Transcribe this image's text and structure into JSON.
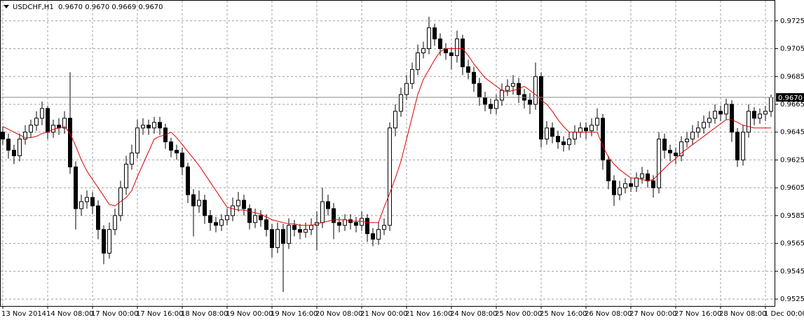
{
  "chart_data": {
    "type": "candlestick",
    "title": "USDCHF,H1  0.9670 0.9670 0.9669 0.9670",
    "up_color": "#ffffff",
    "down_color": "#000000",
    "outline_color": "#000000",
    "ylim": [
      0.952,
      0.974
    ],
    "yticks": [
      0.9725,
      0.9705,
      0.9685,
      0.9665,
      0.9645,
      0.9625,
      0.9605,
      0.9585,
      0.9565,
      0.9545,
      0.9525
    ],
    "grid": true,
    "xticks": [
      {
        "value": 0,
        "label": "13 Nov 2014"
      },
      {
        "value": 8,
        "label": "14 Nov 08:00"
      },
      {
        "value": 16,
        "label": "17 Nov 00:00"
      },
      {
        "value": 24,
        "label": "17 Nov 16:00"
      },
      {
        "value": 32,
        "label": "18 Nov 08:00"
      },
      {
        "value": 40,
        "label": "19 Nov 00:00"
      },
      {
        "value": 48,
        "label": "19 Nov 16:00"
      },
      {
        "value": 56,
        "label": "20 Nov 08:00"
      },
      {
        "value": 64,
        "label": "21 Nov 00:00"
      },
      {
        "value": 72,
        "label": "21 Nov 16:00"
      },
      {
        "value": 80,
        "label": "24 Nov 08:00"
      },
      {
        "value": 88,
        "label": "25 Nov 00:00"
      },
      {
        "value": 96,
        "label": "25 Nov 16:00"
      },
      {
        "value": 104,
        "label": "26 Nov 08:00"
      },
      {
        "value": 112,
        "label": "27 Nov 00:00"
      },
      {
        "value": 120,
        "label": "27 Nov 16:00"
      },
      {
        "value": 128,
        "label": "28 Nov 08:00"
      },
      {
        "value": 136,
        "label": "1 Dec 00:00"
      }
    ],
    "last_price": {
      "value": 0.967,
      "label": "0.9670"
    },
    "open": [
      0.9645,
      0.964,
      0.9632,
      0.9628,
      0.964,
      0.9645,
      0.965,
      0.9655,
      0.9662,
      0.9645,
      0.965,
      0.9648,
      0.9655,
      0.962,
      0.959,
      0.9595,
      0.9598,
      0.9592,
      0.9575,
      0.9558,
      0.9575,
      0.9585,
      0.9605,
      0.9622,
      0.963,
      0.9648,
      0.965,
      0.9648,
      0.9652,
      0.9648,
      0.9638,
      0.9632,
      0.963,
      0.962,
      0.96,
      0.9592,
      0.9596,
      0.9585,
      0.958,
      0.9578,
      0.9582,
      0.9585,
      0.9592,
      0.9596,
      0.959,
      0.958,
      0.9585,
      0.9582,
      0.9575,
      0.9562,
      0.9575,
      0.9565,
      0.9578,
      0.9575,
      0.9573,
      0.9575,
      0.9578,
      0.958,
      0.9595,
      0.959,
      0.958,
      0.9578,
      0.9582,
      0.958,
      0.9578,
      0.9583,
      0.9572,
      0.9568,
      0.9575,
      0.9578,
      0.9648,
      0.966,
      0.9672,
      0.968,
      0.969,
      0.9702,
      0.9705,
      0.972,
      0.9712,
      0.9705,
      0.9702,
      0.97,
      0.9712,
      0.9692,
      0.9688,
      0.968,
      0.967,
      0.9665,
      0.9662,
      0.9668,
      0.9675,
      0.9678,
      0.968,
      0.9672,
      0.9668,
      0.9665,
      0.9685,
      0.964,
      0.9648,
      0.9642,
      0.9638,
      0.9636,
      0.964,
      0.9645,
      0.9648,
      0.9646,
      0.965,
      0.9655,
      0.9625,
      0.961,
      0.96,
      0.9605,
      0.9608,
      0.9606,
      0.9612,
      0.9615,
      0.961,
      0.9605,
      0.964,
      0.9632,
      0.963,
      0.9628,
      0.9638,
      0.964,
      0.9645,
      0.9648,
      0.9652,
      0.9655,
      0.966,
      0.9658,
      0.9665,
      0.9645,
      0.9625,
      0.9645,
      0.966,
      0.9655,
      0.9658,
      0.966
    ],
    "high": [
      0.9649,
      0.9644,
      0.9636,
      0.9644,
      0.965,
      0.9654,
      0.966,
      0.9667,
      0.9664,
      0.9654,
      0.9655,
      0.966,
      0.9688,
      0.9624,
      0.96,
      0.9603,
      0.9602,
      0.9596,
      0.9578,
      0.958,
      0.959,
      0.961,
      0.9628,
      0.9636,
      0.9654,
      0.9655,
      0.9654,
      0.9656,
      0.9656,
      0.9651,
      0.9641,
      0.9636,
      0.9634,
      0.9623,
      0.9604,
      0.9603,
      0.96,
      0.9589,
      0.9584,
      0.9586,
      0.959,
      0.9598,
      0.9602,
      0.96,
      0.9593,
      0.959,
      0.9589,
      0.9586,
      0.9579,
      0.958,
      0.9579,
      0.9583,
      0.9582,
      0.9579,
      0.958,
      0.9583,
      0.9588,
      0.9605,
      0.96,
      0.9594,
      0.9584,
      0.9586,
      0.9586,
      0.9584,
      0.9588,
      0.9586,
      0.9576,
      0.958,
      0.9583,
      0.9652,
      0.9665,
      0.9677,
      0.9686,
      0.9695,
      0.9708,
      0.971,
      0.9728,
      0.9723,
      0.9716,
      0.9709,
      0.9706,
      0.9718,
      0.9715,
      0.9697,
      0.9692,
      0.9684,
      0.9674,
      0.9669,
      0.9672,
      0.968,
      0.9683,
      0.9686,
      0.9684,
      0.9676,
      0.9673,
      0.9695,
      0.9688,
      0.9653,
      0.9652,
      0.9646,
      0.9642,
      0.9645,
      0.965,
      0.9652,
      0.9652,
      0.9655,
      0.9662,
      0.9658,
      0.9628,
      0.9614,
      0.961,
      0.9612,
      0.9612,
      0.9616,
      0.962,
      0.9618,
      0.9614,
      0.9645,
      0.9644,
      0.9636,
      0.9634,
      0.9642,
      0.9645,
      0.965,
      0.9653,
      0.9657,
      0.966,
      0.9665,
      0.9664,
      0.9669,
      0.9668,
      0.9648,
      0.965,
      0.9665,
      0.9663,
      0.9662,
      0.9664,
      0.9672
    ],
    "low": [
      0.9636,
      0.9626,
      0.9622,
      0.9624,
      0.9636,
      0.9641,
      0.9646,
      0.965,
      0.964,
      0.9641,
      0.9643,
      0.9644,
      0.9615,
      0.9575,
      0.9585,
      0.959,
      0.9586,
      0.9568,
      0.955,
      0.9554,
      0.9571,
      0.9581,
      0.96,
      0.9618,
      0.9626,
      0.9643,
      0.9643,
      0.9644,
      0.9643,
      0.9633,
      0.9627,
      0.9625,
      0.9614,
      0.9594,
      0.957,
      0.9587,
      0.9579,
      0.9574,
      0.9573,
      0.9574,
      0.9578,
      0.9581,
      0.9588,
      0.9585,
      0.9575,
      0.9576,
      0.9577,
      0.957,
      0.9555,
      0.9558,
      0.953,
      0.9561,
      0.957,
      0.9568,
      0.9569,
      0.9571,
      0.956,
      0.9576,
      0.9585,
      0.9568,
      0.9573,
      0.9574,
      0.9575,
      0.9573,
      0.9574,
      0.9566,
      0.9563,
      0.9564,
      0.9571,
      0.9574,
      0.9642,
      0.9656,
      0.9668,
      0.9676,
      0.9686,
      0.9698,
      0.9701,
      0.9707,
      0.97,
      0.9697,
      0.969,
      0.9695,
      0.9686,
      0.9683,
      0.9674,
      0.9664,
      0.966,
      0.9658,
      0.9658,
      0.9664,
      0.9671,
      0.9672,
      0.9666,
      0.9662,
      0.9658,
      0.9661,
      0.9634,
      0.9636,
      0.9637,
      0.9633,
      0.9631,
      0.9632,
      0.9636,
      0.9641,
      0.964,
      0.9642,
      0.9646,
      0.9618,
      0.9604,
      0.9592,
      0.9596,
      0.9601,
      0.9602,
      0.9602,
      0.9608,
      0.9605,
      0.9598,
      0.9601,
      0.9626,
      0.9624,
      0.9622,
      0.9624,
      0.9634,
      0.9636,
      0.9641,
      0.9644,
      0.9648,
      0.9651,
      0.9653,
      0.9654,
      0.9638,
      0.962,
      0.9621,
      0.9641,
      0.965,
      0.9651,
      0.9653,
      0.9656
    ],
    "close": [
      0.964,
      0.9632,
      0.9628,
      0.964,
      0.9645,
      0.965,
      0.9655,
      0.9662,
      0.9645,
      0.965,
      0.9648,
      0.9655,
      0.962,
      0.959,
      0.9595,
      0.9598,
      0.9592,
      0.9575,
      0.9558,
      0.9575,
      0.9585,
      0.9605,
      0.9622,
      0.963,
      0.9648,
      0.965,
      0.9648,
      0.9652,
      0.9648,
      0.9638,
      0.9632,
      0.963,
      0.962,
      0.96,
      0.9592,
      0.9596,
      0.9585,
      0.958,
      0.9578,
      0.9582,
      0.9585,
      0.9592,
      0.9596,
      0.959,
      0.958,
      0.9585,
      0.9582,
      0.9575,
      0.9562,
      0.9575,
      0.9565,
      0.9578,
      0.9575,
      0.9573,
      0.9575,
      0.9578,
      0.958,
      0.9595,
      0.959,
      0.958,
      0.9578,
      0.9582,
      0.958,
      0.9578,
      0.9583,
      0.9572,
      0.9568,
      0.9575,
      0.9578,
      0.9648,
      0.966,
      0.9672,
      0.968,
      0.969,
      0.9702,
      0.9705,
      0.972,
      0.9712,
      0.9705,
      0.9702,
      0.97,
      0.9712,
      0.9692,
      0.9688,
      0.968,
      0.967,
      0.9665,
      0.9662,
      0.9668,
      0.9675,
      0.9678,
      0.968,
      0.9672,
      0.9668,
      0.9665,
      0.9685,
      0.964,
      0.9648,
      0.9642,
      0.9638,
      0.9636,
      0.964,
      0.9645,
      0.9648,
      0.9646,
      0.965,
      0.9655,
      0.9625,
      0.961,
      0.96,
      0.9605,
      0.9608,
      0.9606,
      0.9612,
      0.9615,
      0.961,
      0.9605,
      0.964,
      0.9632,
      0.963,
      0.9628,
      0.9638,
      0.964,
      0.9645,
      0.9648,
      0.9652,
      0.9655,
      0.966,
      0.9658,
      0.9665,
      0.9645,
      0.9625,
      0.9645,
      0.966,
      0.9655,
      0.9658,
      0.966,
      0.967
    ],
    "overlay": {
      "color": "#e00000",
      "values": [
        0.9649,
        0.9647,
        0.9645,
        0.9643,
        0.9641,
        0.9641,
        0.9642,
        0.9644,
        0.9645,
        0.9647,
        0.9648,
        0.9649,
        0.9644,
        0.9635,
        0.9625,
        0.9617,
        0.9611,
        0.9605,
        0.9599,
        0.9593,
        0.9592,
        0.9595,
        0.9598,
        0.9603,
        0.9613,
        0.9622,
        0.9631,
        0.964,
        0.9642,
        0.9643,
        0.9645,
        0.9641,
        0.9636,
        0.9631,
        0.9626,
        0.9621,
        0.9615,
        0.9609,
        0.9603,
        0.9597,
        0.9591,
        0.959,
        0.9589,
        0.9589,
        0.9588,
        0.9587,
        0.9586,
        0.9584,
        0.9582,
        0.9581,
        0.958,
        0.9579,
        0.9579,
        0.9578,
        0.9578,
        0.9578,
        0.9579,
        0.958,
        0.9581,
        0.9582,
        0.9582,
        0.9582,
        0.9581,
        0.9581,
        0.9581,
        0.958,
        0.958,
        0.958,
        0.9591,
        0.9601,
        0.9612,
        0.9624,
        0.964,
        0.9656,
        0.9672,
        0.9683,
        0.969,
        0.9697,
        0.9703,
        0.9705,
        0.9705,
        0.9705,
        0.9705,
        0.97,
        0.9694,
        0.9689,
        0.9684,
        0.9681,
        0.9678,
        0.9675,
        0.9674,
        0.9675,
        0.9676,
        0.9678,
        0.9675,
        0.9672,
        0.9668,
        0.9665,
        0.966,
        0.9654,
        0.9649,
        0.9645,
        0.9645,
        0.9645,
        0.9645,
        0.9645,
        0.9645,
        0.9635,
        0.9627,
        0.9622,
        0.9618,
        0.9615,
        0.9612,
        0.9612,
        0.9611,
        0.961,
        0.9611,
        0.9615,
        0.9619,
        0.9623,
        0.9626,
        0.963,
        0.9633,
        0.9636,
        0.9639,
        0.9642,
        0.9645,
        0.9648,
        0.9651,
        0.9654,
        0.9654,
        0.9652,
        0.965,
        0.9649,
        0.9648,
        0.9648,
        0.9648,
        0.9648
      ]
    }
  }
}
